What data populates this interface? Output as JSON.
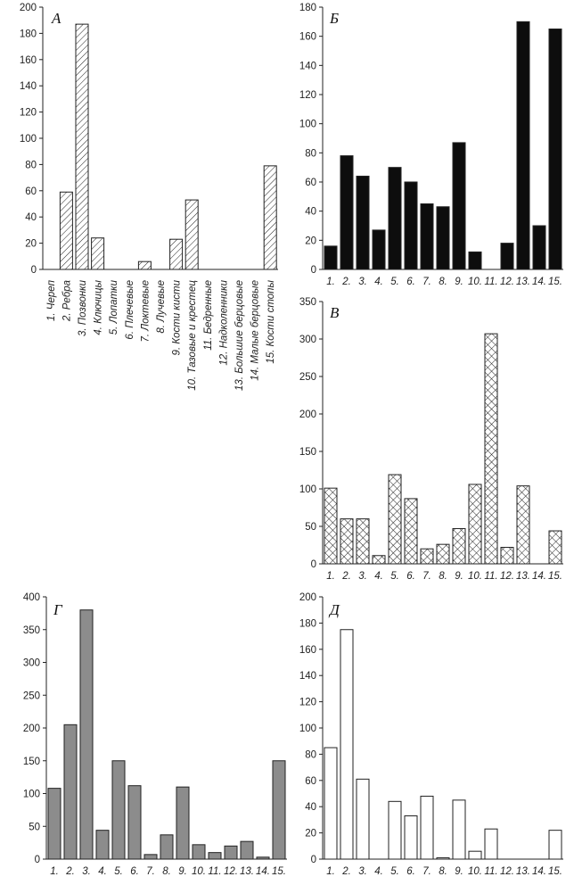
{
  "chart_data": [
    {
      "panel": "А",
      "type": "bar",
      "fill": "hatch-diagonal",
      "color": "#222222",
      "ylim": [
        0,
        200
      ],
      "yticks": [
        "0",
        "20",
        "40",
        "60",
        "80",
        "100",
        "120",
        "140",
        "160",
        "180",
        "200"
      ],
      "categories": [
        "1. Череп",
        "2. Ребра",
        "3. Позвонки",
        "4. Ключицы",
        "5. Лопатки",
        "6. Плечевые",
        "7. Локтевые",
        "8. Лучевые",
        "9. Кости кисти",
        "10. Тазовые и крестец",
        "11. Бедренные",
        "12. Надколенники",
        "13. Большие берцовые",
        "14. Малые берцовые",
        "15. Кости стопы"
      ],
      "values": [
        0,
        59,
        187,
        24,
        0,
        0,
        6,
        0,
        23,
        53,
        0,
        0,
        0,
        0,
        79
      ]
    },
    {
      "panel": "Б",
      "type": "bar",
      "fill": "solid",
      "color": "#0d0d0d",
      "ylim": [
        0,
        180
      ],
      "yticks": [
        "0",
        "20",
        "40",
        "60",
        "80",
        "100",
        "120",
        "140",
        "160",
        "180"
      ],
      "categories": [
        "1.",
        "2.",
        "3.",
        "4.",
        "5.",
        "6.",
        "7.",
        "8.",
        "9.",
        "10.",
        "11.",
        "12.",
        "13.",
        "14.",
        "15."
      ],
      "values": [
        16,
        78,
        64,
        27,
        70,
        60,
        45,
        43,
        87,
        12,
        0,
        18,
        170,
        30,
        165
      ]
    },
    {
      "panel": "В",
      "type": "bar",
      "fill": "hatch-cross",
      "color": "#222222",
      "ylim": [
        0,
        350
      ],
      "yticks": [
        "0",
        "50",
        "100",
        "150",
        "200",
        "250",
        "300",
        "350"
      ],
      "categories": [
        "1.",
        "2.",
        "3.",
        "4.",
        "5.",
        "6.",
        "7.",
        "8.",
        "9.",
        "10.",
        "11.",
        "12.",
        "13.",
        "14.",
        "15."
      ],
      "values": [
        101,
        60,
        60,
        11,
        119,
        87,
        20,
        26,
        47,
        106,
        307,
        22,
        104,
        0,
        44
      ]
    },
    {
      "panel": "Г",
      "type": "bar",
      "fill": "solid",
      "color": "#8c8c8c",
      "ylim": [
        0,
        400
      ],
      "yticks": [
        "0",
        "50",
        "100",
        "150",
        "200",
        "250",
        "300",
        "350",
        "400"
      ],
      "categories": [
        "1.",
        "2.",
        "3.",
        "4.",
        "5.",
        "6.",
        "7.",
        "8.",
        "9.",
        "10.",
        "11.",
        "12.",
        "13.",
        "14.",
        "15."
      ],
      "values": [
        108,
        205,
        380,
        44,
        150,
        112,
        7,
        37,
        110,
        22,
        10,
        20,
        27,
        3,
        150
      ]
    },
    {
      "panel": "Д",
      "type": "bar",
      "fill": "open",
      "color": "#222222",
      "ylim": [
        0,
        200
      ],
      "yticks": [
        "0",
        "20",
        "40",
        "60",
        "80",
        "100",
        "120",
        "140",
        "160",
        "180",
        "200"
      ],
      "categories": [
        "1.",
        "2.",
        "3.",
        "4.",
        "5.",
        "6.",
        "7.",
        "8.",
        "9.",
        "10.",
        "11.",
        "12.",
        "13.",
        "14.",
        "15."
      ],
      "values": [
        85,
        175,
        61,
        0,
        44,
        33,
        48,
        1,
        45,
        6,
        23,
        0,
        0,
        0,
        22
      ]
    }
  ]
}
